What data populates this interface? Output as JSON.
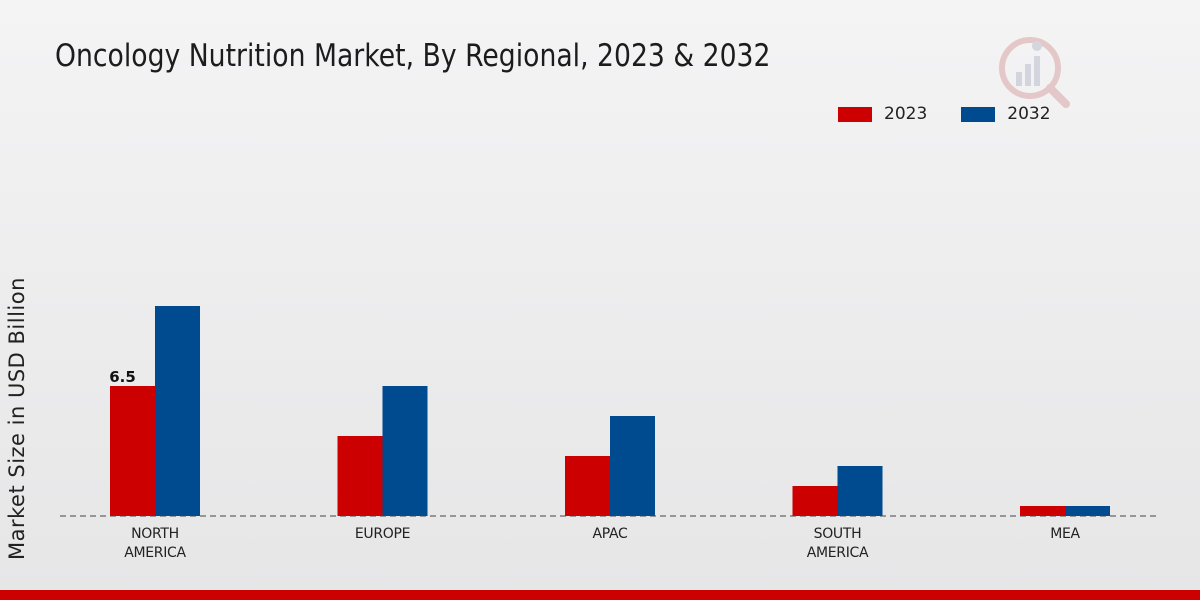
{
  "header": {
    "title": "Oncology Nutrition Market, By Regional, 2023 & 2032"
  },
  "colors": {
    "series_2023": "#cc0000",
    "series_2032": "#004a8f",
    "accent_bar": "#cc0000"
  },
  "chart_data": {
    "type": "bar",
    "title": "Oncology Nutrition Market, By Regional, 2023 & 2032",
    "xlabel": "",
    "ylabel": "Market Size in USD Billion",
    "categories": [
      "NORTH\nAMERICA",
      "EUROPE",
      "APAC",
      "SOUTH\nAMERICA",
      "MEA"
    ],
    "series": [
      {
        "name": "2023",
        "values": [
          6.5,
          4.0,
          3.0,
          1.5,
          0.5
        ]
      },
      {
        "name": "2032",
        "values": [
          10.5,
          6.5,
          5.0,
          2.5,
          0.5
        ]
      }
    ],
    "data_labels": [
      {
        "series": 0,
        "index": 0,
        "text": "6.5"
      }
    ],
    "ylim": [
      0,
      14
    ],
    "legend_position": "top-right",
    "grid": false
  }
}
